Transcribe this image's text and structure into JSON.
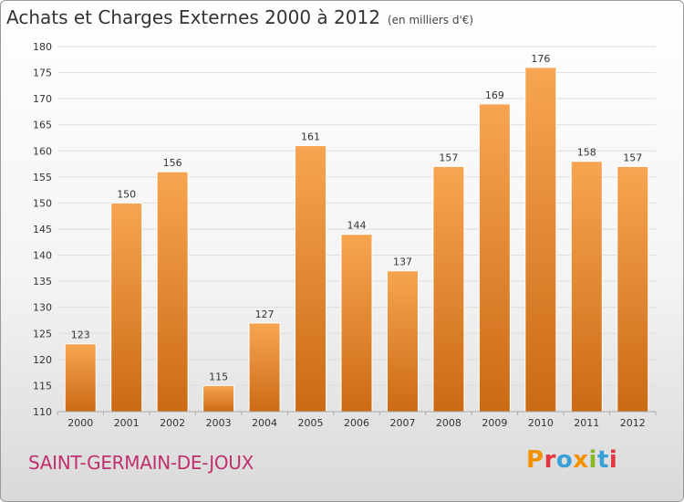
{
  "header": {
    "title": "Achats et Charges Externes 2000 à 2012",
    "unit": "(en milliers d'€)"
  },
  "footer": {
    "commune": "SAINT-GERMAIN-DE-JOUX",
    "logo": "Proxiti"
  },
  "colors": {
    "bar_top": "#f7a552",
    "bar_bottom": "#cc6a14",
    "logo_letters": [
      "#f39200",
      "#e2353d",
      "#3aa0d8",
      "#f39200",
      "#88b824",
      "#3aa0d8",
      "#e2353d"
    ]
  },
  "chart_data": {
    "type": "bar",
    "title": "Achats et Charges Externes 2000 à 2012",
    "xlabel": "",
    "ylabel": "",
    "categories": [
      "2000",
      "2001",
      "2002",
      "2003",
      "2004",
      "2005",
      "2006",
      "2007",
      "2008",
      "2009",
      "2010",
      "2011",
      "2012"
    ],
    "values": [
      123,
      150,
      156,
      115,
      127,
      161,
      144,
      137,
      157,
      169,
      176,
      158,
      157
    ],
    "ylim": [
      110,
      180
    ],
    "yticks": [
      110,
      115,
      120,
      125,
      130,
      135,
      140,
      145,
      150,
      155,
      160,
      165,
      170,
      175,
      180
    ],
    "grid": true,
    "legend": "none"
  }
}
